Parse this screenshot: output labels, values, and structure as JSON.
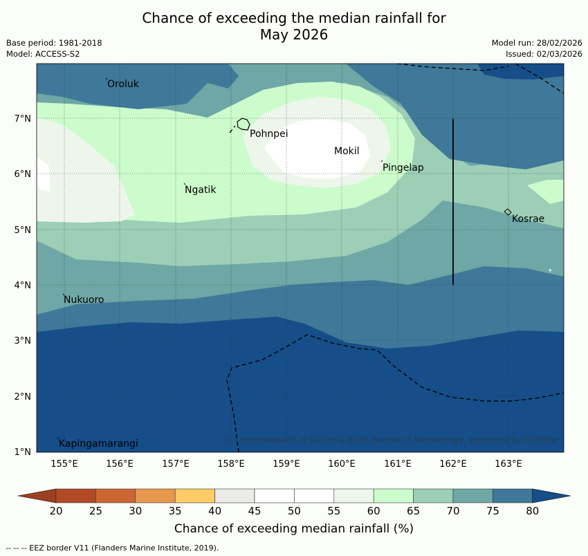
{
  "title": {
    "line1": "Chance of exceeding the median rainfall for",
    "line2": "May 2026"
  },
  "meta": {
    "base_period": "Base period: 1981-2018",
    "model": "Model: ACCESS-S2",
    "model_run": "Model run: 28/02/2026",
    "issued": "Issued: 02/03/2026"
  },
  "axes": {
    "lon_ticks": [
      "155°E",
      "156°E",
      "157°E",
      "158°E",
      "159°E",
      "160°E",
      "161°E",
      "162°E",
      "163°E"
    ],
    "lat_ticks": [
      "7°N",
      "6°N",
      "5°N",
      "4°N",
      "3°N",
      "2°N",
      "1°N"
    ]
  },
  "places": {
    "oroluk": "Oroluk",
    "pohnpei": "Pohnpei",
    "mokil": "Mokil",
    "pingelap": "Pingelap",
    "ngatik": "Ngatik",
    "kosrae": "Kosrae",
    "nukuoro": "Nukuoro",
    "kapingamarangi": "Kapingamarangi"
  },
  "copyright": "© Commonwealth of Australia 2026, Bureau of Meteorology, supported by COSPPac",
  "colorbar": {
    "ticks": [
      "20",
      "25",
      "30",
      "35",
      "40",
      "45",
      "50",
      "55",
      "60",
      "65",
      "70",
      "75",
      "80"
    ],
    "colors": [
      "#b14a25",
      "#cc6633",
      "#e6994d",
      "#ffcc66",
      "#ebebe9",
      "#ffffff",
      "#ffffff",
      "#eef6ec",
      "#ccfccc",
      "#9ccfb6",
      "#6fa6a6",
      "#3f7898"
    ],
    "low_color": "#9c4020",
    "high_color": "#154e88",
    "title": "Chance of exceeding median rainfall (%)"
  },
  "footer": "--  --  -- EEZ border V11 (Flanders Marine Institute, 2019)."
}
